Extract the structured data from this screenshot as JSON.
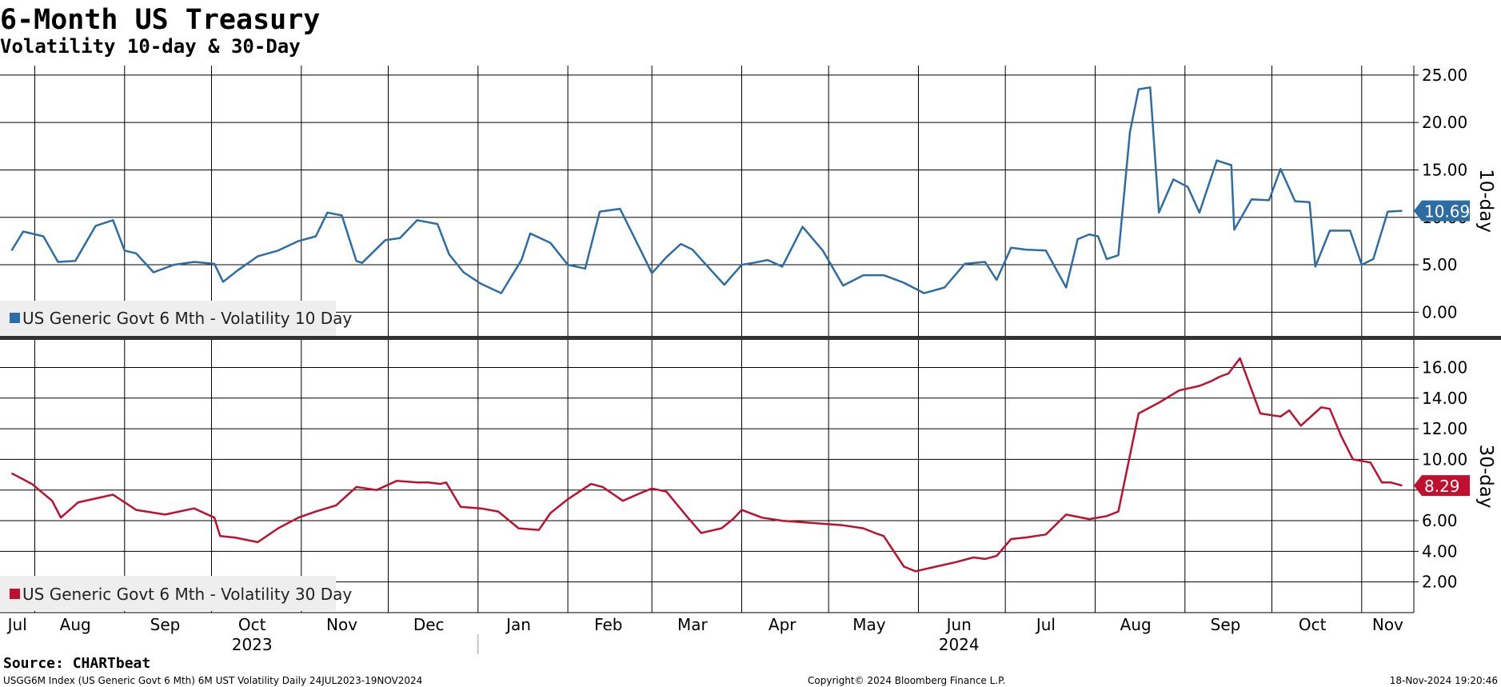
{
  "header": {
    "title": "6-Month US Treasury",
    "subtitle": "Volatility 10-day & 30-Day"
  },
  "footer": {
    "source": "Source: CHARTbeat",
    "ticker_info": "USGG6M Index (US Generic Govt 6 Mth) 6M UST Volatility  Daily 24JUL2023-19NOV2024",
    "copyright": "Copyright© 2024 Bloomberg Finance L.P.",
    "timestamp": "18-Nov-2024 19:20:46"
  },
  "colors": {
    "series_10d": "#2e6da4",
    "series_30d": "#c0102f",
    "grid": "#000000",
    "legend_bg": "#eeeeee"
  },
  "chart_data": [
    {
      "type": "line",
      "panel": "top",
      "axis_side_label": "10-day",
      "ylim": [
        -2.5,
        26
      ],
      "yticks": [
        "25.00",
        "20.00",
        "15.00",
        "10.00",
        "5.00",
        "0.00"
      ],
      "ytick_values": [
        25,
        20,
        15,
        10,
        5,
        0
      ],
      "last_value_label": "10.69",
      "last_value": 10.69,
      "series": [
        {
          "name": "US Generic Govt 6 Mth - Volatility 10 Day",
          "x": [
            "2023-07-24",
            "2023-07-28",
            "2023-08-04",
            "2023-08-09",
            "2023-08-15",
            "2023-08-22",
            "2023-08-28",
            "2023-09-01",
            "2023-09-05",
            "2023-09-11",
            "2023-09-18",
            "2023-09-25",
            "2023-10-02",
            "2023-10-05",
            "2023-10-10",
            "2023-10-17",
            "2023-10-24",
            "2023-10-31",
            "2023-11-06",
            "2023-11-10",
            "2023-11-15",
            "2023-11-20",
            "2023-11-22",
            "2023-11-30",
            "2023-12-05",
            "2023-12-11",
            "2023-12-18",
            "2023-12-22",
            "2023-12-27",
            "2024-01-02",
            "2024-01-09",
            "2024-01-16",
            "2024-01-19",
            "2024-01-26",
            "2024-02-01",
            "2024-02-07",
            "2024-02-12",
            "2024-02-19",
            "2024-02-26",
            "2024-03-01",
            "2024-03-06",
            "2024-03-11",
            "2024-03-15",
            "2024-03-20",
            "2024-03-26",
            "2024-04-01",
            "2024-04-05",
            "2024-04-10",
            "2024-04-15",
            "2024-04-22",
            "2024-04-29",
            "2024-05-06",
            "2024-05-13",
            "2024-05-20",
            "2024-05-27",
            "2024-06-03",
            "2024-06-10",
            "2024-06-17",
            "2024-06-24",
            "2024-06-28",
            "2024-07-03",
            "2024-07-08",
            "2024-07-15",
            "2024-07-22",
            "2024-07-26",
            "2024-07-30",
            "2024-08-02",
            "2024-08-05",
            "2024-08-09",
            "2024-08-13",
            "2024-08-16",
            "2024-08-20",
            "2024-08-23",
            "2024-08-28",
            "2024-09-02",
            "2024-09-06",
            "2024-09-12",
            "2024-09-17",
            "2024-09-18",
            "2024-09-24",
            "2024-09-30",
            "2024-10-04",
            "2024-10-09",
            "2024-10-14",
            "2024-10-16",
            "2024-10-21",
            "2024-10-28",
            "2024-11-01",
            "2024-11-05",
            "2024-11-10",
            "2024-11-15"
          ],
          "values": [
            6.5,
            8.5,
            8,
            5.3,
            5.4,
            9.1,
            9.7,
            6.5,
            6.2,
            4.2,
            5,
            5.3,
            5.1,
            3.2,
            4.4,
            5.9,
            6.5,
            7.5,
            8,
            10.5,
            10.2,
            5.4,
            5.2,
            7.6,
            7.8,
            9.7,
            9.3,
            6.1,
            4.2,
            3,
            2,
            5.5,
            8.3,
            7.3,
            5,
            4.6,
            10.6,
            10.9,
            6.6,
            4.1,
            5.8,
            7.2,
            6.6,
            4.9,
            2.9,
            5,
            5.2,
            5.5,
            4.8,
            9,
            6.5,
            2.8,
            3.9,
            3.9,
            3.1,
            2,
            2.6,
            5.1,
            5.3,
            3.4,
            6.8,
            6.6,
            6.5,
            2.6,
            7.7,
            8.2,
            8,
            5.6,
            6,
            19,
            23.5,
            23.7,
            10.5,
            14,
            13.2,
            10.5,
            16,
            15.5,
            8.7,
            11.9,
            11.8,
            15.1,
            11.7,
            11.6,
            4.8,
            8.6,
            8.6,
            5,
            5.6,
            10.6,
            10.69
          ]
        }
      ]
    },
    {
      "type": "line",
      "panel": "bottom",
      "axis_side_label": "30-day",
      "ylim": [
        0,
        17.8
      ],
      "yticks": [
        "16.00",
        "14.00",
        "12.00",
        "10.00",
        "8.00",
        "6.00",
        "4.00",
        "2.00"
      ],
      "ytick_values": [
        16,
        14,
        12,
        10,
        8,
        6,
        4,
        2
      ],
      "last_value_label": "8.29",
      "last_value": 8.29,
      "series": [
        {
          "name": "US Generic Govt 6 Mth - Volatility 30 Day",
          "x": [
            "2023-07-24",
            "2023-07-31",
            "2023-08-07",
            "2023-08-10",
            "2023-08-16",
            "2023-08-28",
            "2023-09-05",
            "2023-09-15",
            "2023-09-25",
            "2023-10-02",
            "2023-10-04",
            "2023-10-09",
            "2023-10-17",
            "2023-10-24",
            "2023-10-31",
            "2023-11-06",
            "2023-11-13",
            "2023-11-20",
            "2023-11-27",
            "2023-12-04",
            "2023-12-11",
            "2023-12-15",
            "2023-12-19",
            "2023-12-21",
            "2023-12-26",
            "2024-01-02",
            "2024-01-08",
            "2024-01-15",
            "2024-01-22",
            "2024-01-26",
            "2024-02-01",
            "2024-02-09",
            "2024-02-13",
            "2024-02-20",
            "2024-02-26",
            "2024-03-01",
            "2024-03-06",
            "2024-03-13",
            "2024-03-18",
            "2024-03-25",
            "2024-03-29",
            "2024-04-01",
            "2024-04-08",
            "2024-04-15",
            "2024-04-22",
            "2024-04-29",
            "2024-05-06",
            "2024-05-13",
            "2024-05-17",
            "2024-05-20",
            "2024-05-27",
            "2024-05-31",
            "2024-06-07",
            "2024-06-14",
            "2024-06-20",
            "2024-06-24",
            "2024-06-28",
            "2024-07-03",
            "2024-07-08",
            "2024-07-15",
            "2024-07-22",
            "2024-07-30",
            "2024-08-05",
            "2024-08-09",
            "2024-08-16",
            "2024-08-23",
            "2024-08-30",
            "2024-09-06",
            "2024-09-10",
            "2024-09-13",
            "2024-09-16",
            "2024-09-20",
            "2024-09-27",
            "2024-10-04",
            "2024-10-07",
            "2024-10-11",
            "2024-10-18",
            "2024-10-21",
            "2024-10-25",
            "2024-10-29",
            "2024-11-04",
            "2024-11-08",
            "2024-11-11",
            "2024-11-15"
          ],
          "values": [
            9.1,
            8.4,
            7.3,
            6.2,
            7.2,
            7.7,
            6.7,
            6.4,
            6.8,
            6.2,
            5,
            4.9,
            4.6,
            5.5,
            6.2,
            6.6,
            7,
            8.2,
            8,
            8.6,
            8.5,
            8.5,
            8.4,
            8.5,
            6.9,
            6.8,
            6.6,
            5.5,
            5.4,
            6.5,
            7.4,
            8.4,
            8.2,
            7.3,
            7.8,
            8.1,
            7.9,
            6.3,
            5.2,
            5.5,
            6.1,
            6.7,
            6.2,
            6,
            5.9,
            5.8,
            5.7,
            5.5,
            5.2,
            5,
            3,
            2.7,
            3,
            3.3,
            3.6,
            3.5,
            3.7,
            4.8,
            4.9,
            5.1,
            6.4,
            6.1,
            6.3,
            6.6,
            13,
            13.7,
            14.5,
            14.8,
            15.1,
            15.4,
            15.6,
            16.6,
            13,
            12.8,
            13.2,
            12.2,
            13.4,
            13.3,
            11.5,
            10,
            9.8,
            8.5,
            8.5,
            8.29
          ]
        }
      ]
    }
  ],
  "x_axis": {
    "months": [
      {
        "label": "Jul",
        "date": "2023-07-26"
      },
      {
        "label": "Aug",
        "date": "2023-08-15"
      },
      {
        "label": "Sep",
        "date": "2023-09-15"
      },
      {
        "label": "Oct",
        "date": "2023-10-15"
      },
      {
        "label": "Nov",
        "date": "2023-11-15"
      },
      {
        "label": "Dec",
        "date": "2023-12-15"
      },
      {
        "label": "Jan",
        "date": "2024-01-15"
      },
      {
        "label": "Feb",
        "date": "2024-02-15"
      },
      {
        "label": "Mar",
        "date": "2024-03-15"
      },
      {
        "label": "Apr",
        "date": "2024-04-15"
      },
      {
        "label": "May",
        "date": "2024-05-15"
      },
      {
        "label": "Jun",
        "date": "2024-06-15"
      },
      {
        "label": "Jul",
        "date": "2024-07-15"
      },
      {
        "label": "Aug",
        "date": "2024-08-15"
      },
      {
        "label": "Sep",
        "date": "2024-09-15"
      },
      {
        "label": "Oct",
        "date": "2024-10-15"
      },
      {
        "label": "Nov",
        "date": "2024-11-10"
      }
    ],
    "gridlines": [
      "2023-08-01",
      "2023-09-01",
      "2023-10-01",
      "2023-11-01",
      "2023-12-01",
      "2024-01-01",
      "2024-02-01",
      "2024-03-01",
      "2024-04-01",
      "2024-05-01",
      "2024-06-01",
      "2024-07-01",
      "2024-08-01",
      "2024-09-01",
      "2024-10-01",
      "2024-11-01"
    ],
    "years": [
      {
        "label": "2023",
        "date": "2023-10-15"
      },
      {
        "label": "2024",
        "date": "2024-06-15"
      }
    ],
    "range": [
      "2023-07-20",
      "2024-11-19"
    ]
  }
}
